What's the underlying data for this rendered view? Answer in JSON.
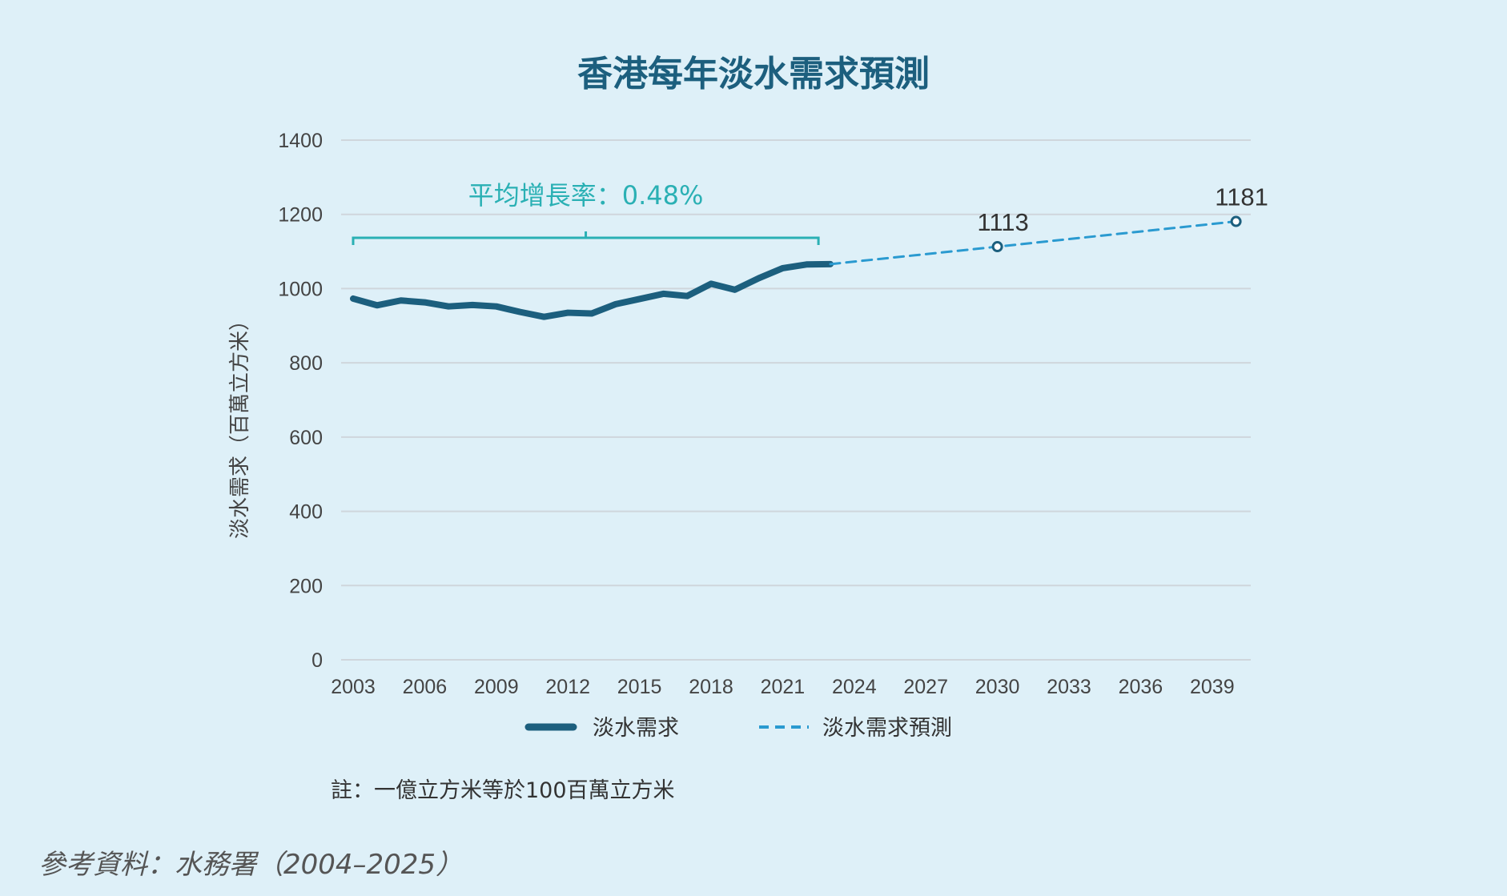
{
  "chart_data": {
    "type": "line",
    "title": "香港每年淡水需求預測",
    "ylabel": "淡水需求（百萬立方米）",
    "xlabel": "",
    "xlim": [
      2003,
      2040
    ],
    "ylim": [
      0,
      1400
    ],
    "x_ticks": [
      "2003",
      "2006",
      "2009",
      "2012",
      "2015",
      "2018",
      "2021",
      "2024",
      "2027",
      "2030",
      "2033",
      "2036",
      "2039"
    ],
    "y_ticks": [
      "0",
      "200",
      "400",
      "600",
      "800",
      "1000",
      "1200",
      "1400"
    ],
    "grid": true,
    "legend_position": "bottom",
    "series": [
      {
        "name": "淡水需求",
        "style": "solid",
        "color": "#1c5f7e",
        "x": [
          2003,
          2004,
          2005,
          2006,
          2007,
          2008,
          2009,
          2010,
          2011,
          2012,
          2013,
          2014,
          2015,
          2016,
          2017,
          2018,
          2019,
          2020,
          2021,
          2022,
          2023
        ],
        "y": [
          973,
          955,
          968,
          963,
          952,
          956,
          952,
          937,
          924,
          935,
          933,
          958,
          972,
          986,
          980,
          1013,
          997,
          1028,
          1055,
          1065,
          1066
        ]
      },
      {
        "name": "淡水需求預測",
        "style": "dashed",
        "color": "#2a9ad0",
        "x": [
          2023,
          2030,
          2040
        ],
        "y": [
          1066,
          1113,
          1181
        ],
        "labeled_points": [
          {
            "x": 2030,
            "y": 1113,
            "label": "1113"
          },
          {
            "x": 2040,
            "y": 1181,
            "label": "1181"
          }
        ]
      }
    ],
    "annotation": {
      "text": "平均增長率：0.48%",
      "x_start": 2003,
      "x_end": 2022.5,
      "color": "#2ab0b4"
    },
    "note": "註：一億立方米等於100百萬立方米",
    "source": "參考資料：水務署（2004–2025）"
  }
}
